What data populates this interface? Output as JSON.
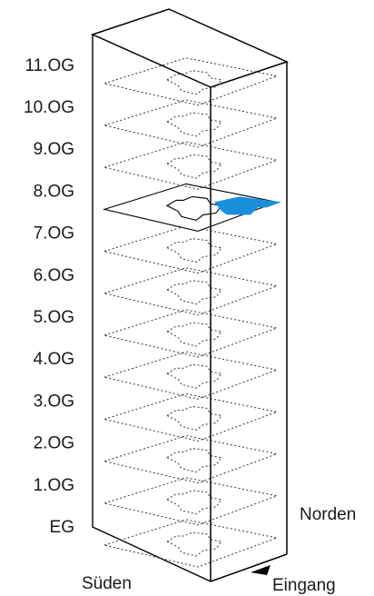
{
  "floors": [
    {
      "label": "EG",
      "highlighted": false
    },
    {
      "label": "1.OG",
      "highlighted": false
    },
    {
      "label": "2.OG",
      "highlighted": false
    },
    {
      "label": "3.OG",
      "highlighted": false
    },
    {
      "label": "4.OG",
      "highlighted": false
    },
    {
      "label": "5.OG",
      "highlighted": false
    },
    {
      "label": "6.OG",
      "highlighted": false
    },
    {
      "label": "7.OG",
      "highlighted": false
    },
    {
      "label": "8.OG",
      "highlighted": true
    },
    {
      "label": "9.OG",
      "highlighted": false
    },
    {
      "label": "10.OG",
      "highlighted": false
    },
    {
      "label": "11.OG",
      "highlighted": false
    }
  ],
  "labels": {
    "north": "Norden",
    "south": "Süden",
    "entrance": "Eingang"
  },
  "colors": {
    "highlight": "#1a8fdc",
    "outline": "#000000",
    "dotted_floor": "#333333"
  },
  "icons": {
    "entrance_marker": "entrance-arrow-icon"
  }
}
